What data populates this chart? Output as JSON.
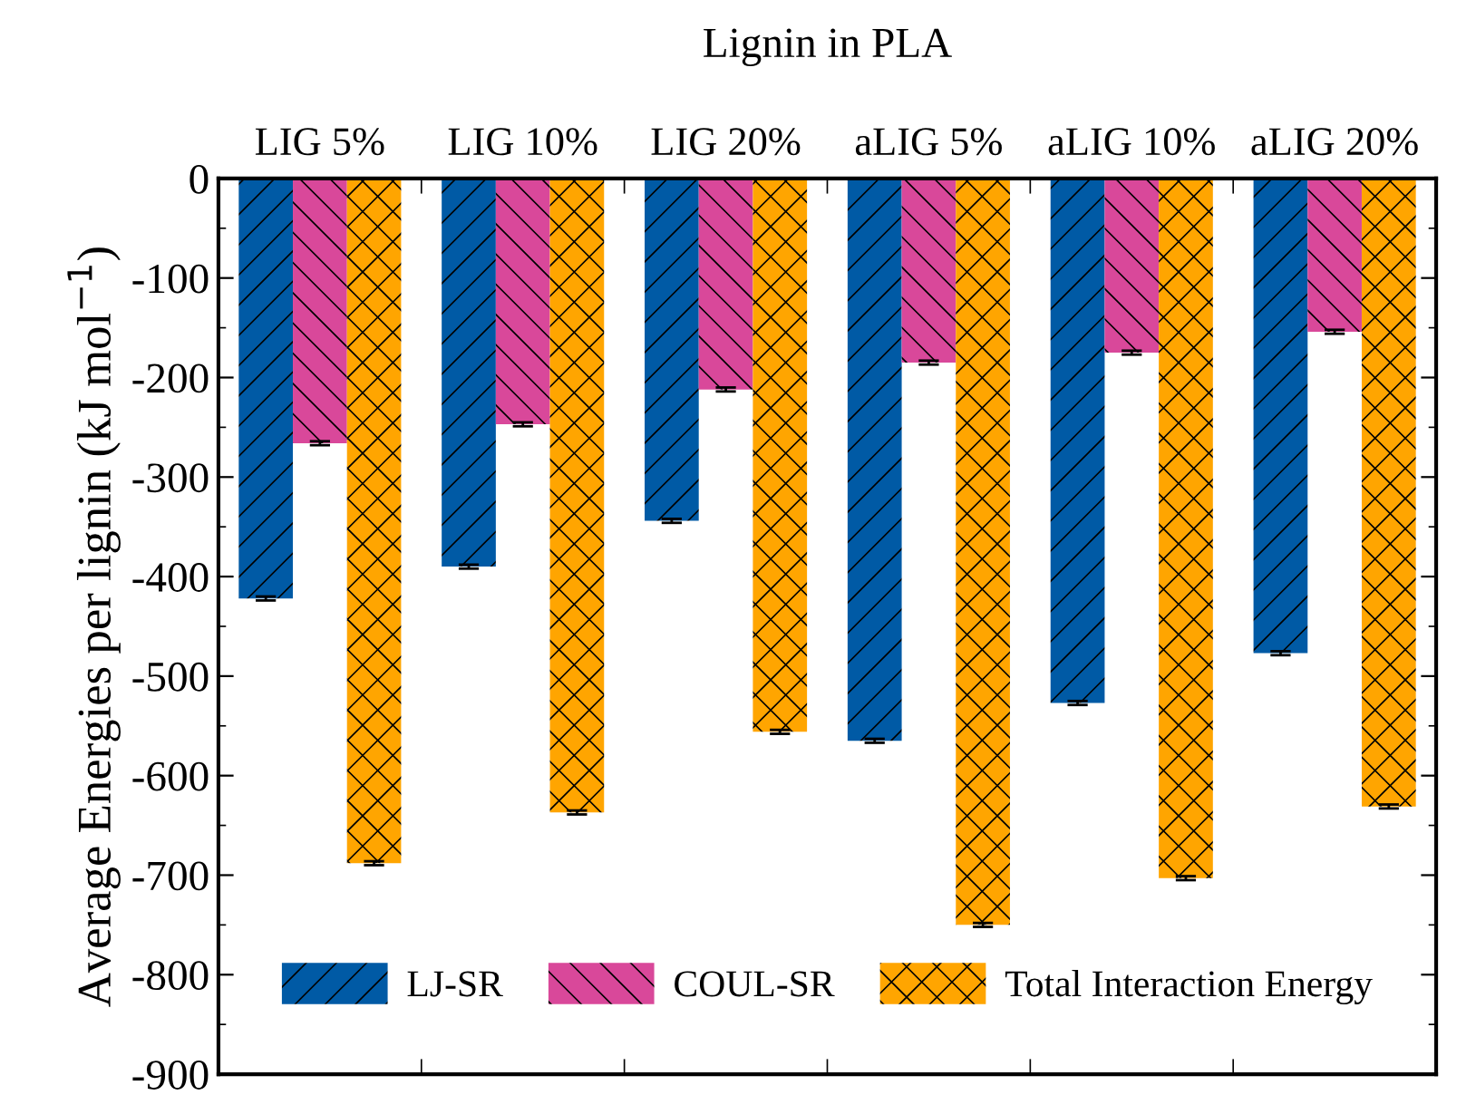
{
  "chart_data": {
    "type": "bar",
    "title": "Lignin in PLA",
    "ylabel": "Average Energies per lignin (kJ mol$^{−1}$)",
    "categories": [
      "LIG 5%",
      "LIG 10%",
      "LIG 20%",
      "aLIG 5%",
      "aLIG 10%",
      "aLIG 20%"
    ],
    "series": [
      {
        "name": "LJ-SR",
        "color": "#005aa5",
        "values": [
          -422,
          -390,
          -344,
          -565,
          -527,
          -477
        ],
        "errors": [
          2,
          2,
          2,
          2,
          2,
          2
        ]
      },
      {
        "name": "COUL-SR",
        "color": "#d9489a",
        "values": [
          -266,
          -247,
          -212,
          -185,
          -175,
          -154
        ],
        "errors": [
          2,
          2,
          2,
          2,
          2,
          2
        ]
      },
      {
        "name": "Total Interaction Energy",
        "color": "#ffa500",
        "values": [
          -688,
          -637,
          -556,
          -750,
          -703,
          -631
        ],
        "errors": [
          2,
          2,
          2,
          2,
          2,
          2
        ]
      }
    ],
    "ylim": [
      -900,
      0
    ],
    "yticks": [
      -900,
      -800,
      -700,
      -600,
      -500,
      -400,
      -300,
      -200,
      -100,
      0
    ],
    "grid": false,
    "legend": "bottom"
  }
}
